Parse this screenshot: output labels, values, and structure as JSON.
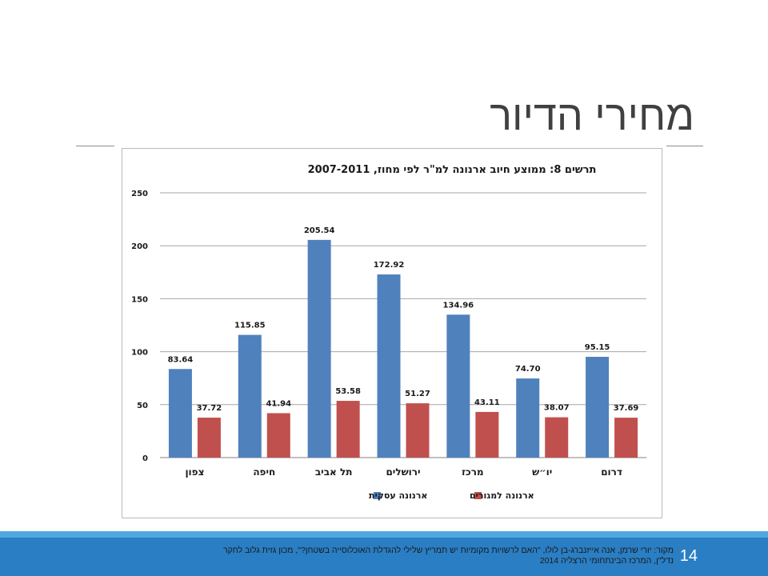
{
  "slide": {
    "title": "מחירי הדיור",
    "page_number": "14",
    "source_line1": "מקור: יורי שרמן, אנה אייזנברג-בן לולו, \"האם לרשויות מקומיות יש תמריץ שלילי להגדלת האוכלוסייה בשטחן?\", מכון גזית גלוב לחקר",
    "source_line2": "נדל\"ן, המרכז הבינתחומי הרצליה 2014"
  },
  "colors": {
    "business": "#4f81bd",
    "residential": "#c0504d",
    "grid": "#a6a6a6",
    "footer": "#2a7ec3"
  },
  "chart_data": {
    "type": "bar",
    "title": "תרשים 8: ממוצע חיוב ארנונה למ\"ר לפי מחוז, 2007-2011",
    "categories": [
      "צפון",
      "חיפה",
      "תל אביב",
      "ירושלים",
      "מרכז",
      "יו\"ש",
      "דרום"
    ],
    "category_labels": [
      "צפון",
      "חיפה",
      "תל אביב",
      "ירושלים",
      "מרכז",
      "יו״ש",
      "דרום"
    ],
    "series": [
      {
        "name": "ארנונה עסקית",
        "values": [
          83.64,
          115.85,
          205.54,
          172.92,
          134.96,
          74.7,
          95.15
        ],
        "labels": [
          "83.64",
          "115.85",
          "205.54",
          "172.92",
          "134.96",
          "74.70",
          "95.15"
        ]
      },
      {
        "name": "ארנונה למגורים",
        "values": [
          37.72,
          41.94,
          53.58,
          51.27,
          43.11,
          38.07,
          37.69
        ],
        "labels": [
          "37.72",
          "41.94",
          "53.58",
          "51.27",
          "43.11",
          "38.07",
          "37.69"
        ]
      }
    ],
    "ylim": [
      0,
      250
    ],
    "yticks": [
      0,
      50,
      100,
      150,
      200,
      250
    ],
    "grid": true,
    "legend_position": "bottom"
  }
}
